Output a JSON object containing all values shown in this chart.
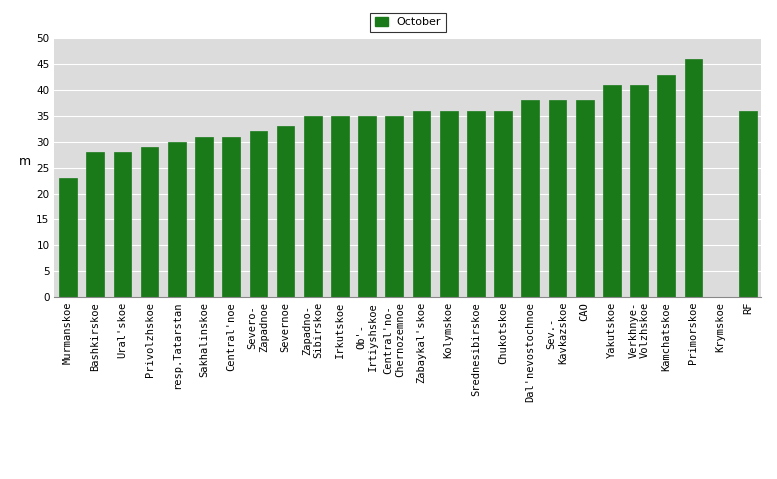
{
  "categories": [
    "Murmanskoe",
    "Bashkirskoe",
    "Ural'skoe",
    "Privolzhskoe",
    "resp.Tatarstan",
    "Sakhalinskoe",
    "Central'noe",
    "Severo-\nZapadnoe",
    "Severnoe",
    "Zapadno-\nSibirskoe",
    "Irkutskoe",
    "Ob'-\nIrtiyshskoe",
    "Central'no-\nChernozemnoe",
    "Zabaykal'skoe",
    "Kolymskoe",
    "Srednesibirskoe",
    "Chukotskoe",
    "Dal'nevostochnoe",
    "Sev.-\nKavkazskoe",
    "CAO",
    "Yakutskoe",
    "Verkhnye-\nVolzhskoe",
    "Kamchatskoe",
    "Primorskoe",
    "Krymskoe",
    "RF"
  ],
  "values": [
    23,
    28,
    28,
    29,
    30,
    31,
    31,
    32,
    33,
    35,
    35,
    35,
    35,
    36,
    36,
    36,
    36,
    38,
    38,
    38,
    41,
    41,
    43,
    46,
    0,
    36
  ],
  "bar_color": "#1a7a1a",
  "legend_label": "October",
  "ylabel": "m",
  "ylim": [
    0,
    50
  ],
  "yticks": [
    0,
    5,
    10,
    15,
    20,
    25,
    30,
    35,
    40,
    45,
    50
  ],
  "background_color": "#dcdcdc",
  "fig_background": "#ffffff",
  "legend_fontsize": 8,
  "axis_label_fontsize": 9,
  "tick_fontsize": 7.5
}
